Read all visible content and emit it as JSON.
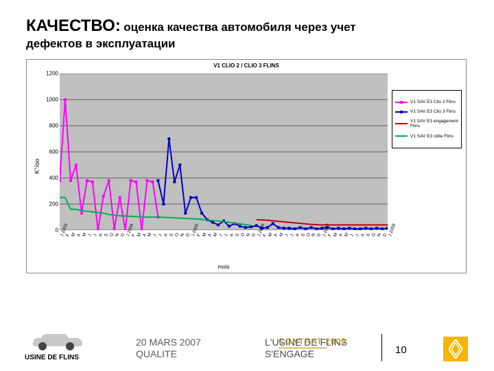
{
  "title": {
    "main": "КАЧЕСТВО:",
    "sub_inline": " оценка качества автомобиля через учет",
    "sub_line2": "дефектов в эксплуатации"
  },
  "chart": {
    "title": "V1 CLIO 2 / CLIO 3  FLINS",
    "type": "line",
    "ylabel": "K°/oo",
    "xlabel": "mois",
    "background_color": "#c0c0c0",
    "gridline_color": "#000000",
    "ylim": [
      0,
      1200
    ],
    "ytick_step": 200,
    "yticks": [
      0,
      200,
      400,
      600,
      800,
      1000,
      1200
    ],
    "categories": [
      "J 2003",
      "F",
      "M",
      "A",
      "M",
      "J",
      "J",
      "A",
      "S",
      "O",
      "N",
      "D",
      "J 2004",
      "F",
      "M",
      "A",
      "M",
      "J",
      "J",
      "A",
      "S",
      "O",
      "N",
      "D",
      "J 2005",
      "F",
      "M",
      "A",
      "M",
      "J",
      "J",
      "A",
      "S",
      "O",
      "N",
      "D",
      "J 2006",
      "F",
      "M",
      "A",
      "M",
      "J",
      "J",
      "A",
      "S",
      "O",
      "N",
      "D",
      "J 2007",
      "F",
      "M",
      "A",
      "M",
      "J",
      "J",
      "A",
      "S",
      "O",
      "N",
      "D",
      "J 2008"
    ],
    "series": [
      {
        "name": "V1 SAV E3 Clio 2 Flins",
        "color": "#ff00ff",
        "marker": "square",
        "line_width": 2,
        "values": [
          380,
          1000,
          380,
          500,
          130,
          380,
          370,
          0,
          260,
          380,
          10,
          250,
          0,
          380,
          370,
          0,
          380,
          370,
          100,
          null,
          null,
          null,
          null,
          null,
          null,
          null,
          null,
          null,
          null,
          null,
          null,
          null,
          null,
          null,
          null,
          null,
          null,
          null,
          null,
          null,
          null,
          null,
          null,
          null,
          null,
          null,
          null,
          null,
          null,
          null,
          null,
          null,
          null,
          null,
          null,
          null,
          null,
          null,
          null,
          null,
          null
        ]
      },
      {
        "name": "V1 SAV E3 Clio 3 Flins",
        "color": "#0000c0",
        "marker": "square",
        "line_width": 2,
        "values": [
          null,
          null,
          null,
          null,
          null,
          null,
          null,
          null,
          null,
          null,
          null,
          null,
          null,
          null,
          null,
          null,
          null,
          null,
          380,
          200,
          700,
          370,
          500,
          130,
          250,
          250,
          130,
          80,
          60,
          40,
          70,
          30,
          50,
          30,
          20,
          25,
          35,
          15,
          20,
          50,
          20,
          15,
          15,
          10,
          20,
          10,
          20,
          10,
          15,
          20,
          10,
          15,
          10,
          15,
          10,
          10,
          15,
          10,
          15,
          10,
          15
        ]
      },
      {
        "name": "V1 SAV E3 engagement Flins",
        "color": "#c00000",
        "marker": "none",
        "line_width": 2,
        "values": [
          null,
          null,
          null,
          null,
          null,
          null,
          null,
          null,
          null,
          null,
          null,
          null,
          null,
          null,
          null,
          null,
          null,
          null,
          null,
          null,
          null,
          null,
          null,
          null,
          null,
          null,
          null,
          null,
          null,
          null,
          null,
          null,
          null,
          null,
          null,
          null,
          80,
          78,
          76,
          72,
          68,
          64,
          60,
          56,
          52,
          48,
          44,
          42,
          40,
          40,
          40,
          40,
          40,
          40,
          40,
          40,
          40,
          40,
          40,
          40,
          40
        ]
      },
      {
        "name": "V1 SAV E3 cible Flins",
        "color": "#00b050",
        "marker": "none",
        "line_width": 2,
        "values": [
          250,
          250,
          160,
          160,
          150,
          145,
          140,
          135,
          130,
          120,
          115,
          110,
          108,
          106,
          104,
          102,
          100,
          100,
          100,
          98,
          96,
          94,
          92,
          90,
          88,
          86,
          82,
          78,
          74,
          70,
          66,
          60,
          54,
          48,
          42,
          36,
          null,
          null,
          null,
          null,
          null,
          null,
          null,
          null,
          null,
          null,
          null,
          null,
          null,
          null,
          null,
          null,
          null,
          null,
          null,
          null,
          null,
          null,
          null,
          null,
          null
        ]
      }
    ],
    "legend": {
      "position": "right"
    }
  },
  "footer": {
    "usine": "USINE DE FLINS",
    "col1_line1": "20 MARS 2007",
    "col1_line2": "QUALITE",
    "col2_line1": "L'USINE DE FLINS",
    "col2_line2": "S'ENGAGE",
    "contrat_overlay": "CONTRAT 2009",
    "page": "10",
    "logo_name": "renault-logo"
  },
  "colors": {
    "title_text": "#000000",
    "footer_text": "#5a5a5a",
    "contrat_text": "#a88b00",
    "logo_bg": "#f7b500"
  }
}
